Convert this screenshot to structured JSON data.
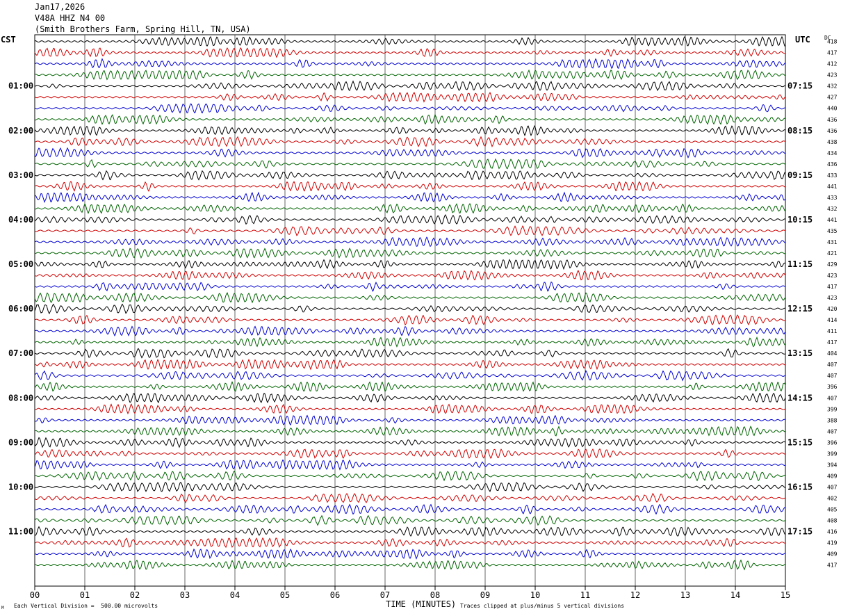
{
  "header": {
    "date": "Jan17,2026",
    "station": "V48A HHZ N4 00",
    "location": "(Smith Brothers Farm, Spring Hill, TN, USA)"
  },
  "axes": {
    "left_zone": "CST",
    "right_zone": "UTC",
    "dc_label": "DC",
    "xlabel": "TIME (MINUTES)",
    "x_ticks": [
      "00",
      "01",
      "02",
      "03",
      "04",
      "05",
      "06",
      "07",
      "08",
      "09",
      "10",
      "11",
      "12",
      "13",
      "14",
      "15"
    ]
  },
  "footer": {
    "scale_note": "Each Vertical Division =  500.00 microvolts",
    "clip_note": "Traces clipped at plus/minus 5 vertical divisions",
    "corner_mark": "M"
  },
  "colors": {
    "trace_cycle": [
      "#000000",
      "#d00000",
      "#0000d0",
      "#006400"
    ],
    "grid": "#000000"
  },
  "chart_data": {
    "type": "line",
    "description_kind": "helicorder",
    "x_range_minutes": [
      0,
      15
    ],
    "rows_per_hour": 4,
    "left_hour_labels": [
      "01:00",
      "02:00",
      "03:00",
      "04:00",
      "05:00",
      "06:00",
      "07:00",
      "08:00",
      "09:00",
      "10:00",
      "11:00"
    ],
    "right_hour_labels": [
      "07:15",
      "08:15",
      "09:15",
      "10:15",
      "11:15",
      "12:15",
      "13:15",
      "14:15",
      "15:15",
      "16:15",
      "17:15"
    ],
    "dc_values": [
      418,
      417,
      412,
      423,
      432,
      427,
      440,
      436,
      436,
      438,
      434,
      436,
      433,
      441,
      433,
      432,
      441,
      435,
      431,
      421,
      429,
      423,
      417,
      423,
      420,
      414,
      411,
      417,
      404,
      407,
      407,
      396,
      407,
      399,
      388,
      407,
      396,
      399,
      394,
      409,
      407,
      402,
      405,
      408,
      416,
      419,
      409,
      417
    ]
  }
}
